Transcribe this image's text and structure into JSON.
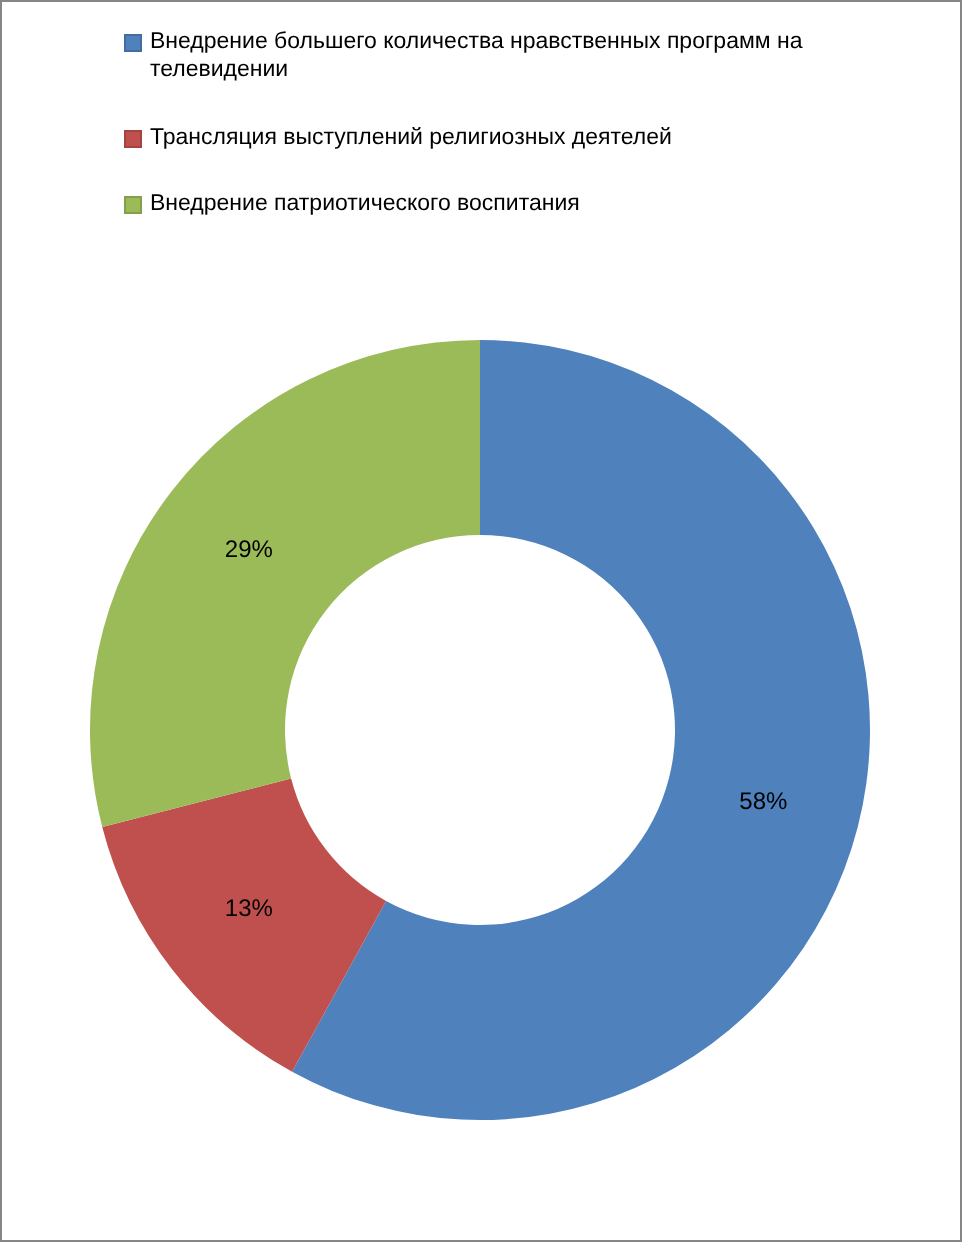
{
  "chart_data": {
    "type": "donut",
    "categories": [
      "Внедрение большего количества нравственных программ на телевидении",
      "Трансляция выступлений религиозных деятелей",
      "Внедрение патриотического воспитания"
    ],
    "values": [
      58,
      13,
      29
    ],
    "colors": [
      "#4f81bd",
      "#c0504d",
      "#9bbb59"
    ],
    "value_labels": [
      "58%",
      "13%",
      "29%"
    ],
    "legend": "top"
  }
}
